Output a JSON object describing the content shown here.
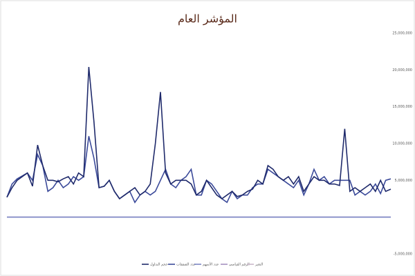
{
  "chart_data": {
    "type": "line",
    "title": "المؤشر العام",
    "categories": [
      null,
      null,
      null,
      null,
      null,
      null,
      null,
      null,
      null,
      null,
      null,
      null,
      null,
      null,
      null,
      null,
      null,
      null,
      null,
      null,
      null,
      null,
      null,
      null,
      null,
      null,
      null,
      null,
      null,
      null,
      null,
      null,
      null,
      null,
      null,
      null,
      null,
      null,
      null,
      null,
      null,
      null,
      null,
      null,
      null,
      null,
      null,
      null,
      null,
      null,
      null,
      null,
      null,
      null,
      null,
      null,
      null,
      null,
      null,
      null,
      null,
      null,
      null,
      null,
      null,
      null,
      null,
      null,
      null,
      null,
      null,
      null,
      null,
      null,
      null,
      null
    ],
    "series": [
      {
        "name": "حجم التداول",
        "color": "#1f2a6b",
        "values": [
          2700000,
          4000000,
          5000000,
          5500000,
          6000000,
          4200000,
          9800000,
          7000000,
          5000000,
          5000000,
          4800000,
          5200000,
          5500000,
          4500000,
          6000000,
          5500000,
          20400000,
          13000000,
          4000000,
          4200000,
          5000000,
          3500000,
          2500000,
          3000000,
          3500000,
          4000000,
          3000000,
          3500000,
          4500000,
          10000000,
          17000000,
          6000000,
          4500000,
          5000000,
          5000000,
          5000000,
          4500000,
          3000000,
          3500000,
          5000000,
          4000000,
          3000000,
          2500000,
          3000000,
          3500000,
          2800000,
          3000000,
          3500000,
          3800000,
          5000000,
          4500000,
          7000000,
          6500000,
          5500000,
          5000000,
          5500000,
          4500000,
          5500000,
          3500000,
          4500000,
          5500000,
          5000000,
          5000000,
          4500000,
          4500000,
          4300000,
          12000000,
          3500000,
          4000000,
          3500000,
          4000000,
          4500000,
          3500000,
          5000000,
          3500000,
          3800000
        ]
      },
      {
        "name": "عدد الصفقات",
        "color": "#3b4a9a",
        "values": [
          2700000,
          4500000,
          5200000,
          5600000,
          6000000,
          5000000,
          8500000,
          7000000,
          3500000,
          4000000,
          5000000,
          4000000,
          4500000,
          5500000,
          5000000,
          5500000,
          11000000,
          8000000,
          4000000,
          4200000,
          5000000,
          3500000,
          2500000,
          3000000,
          3500000,
          2000000,
          3000000,
          3500000,
          3000000,
          3500000,
          5000000,
          6500000,
          4500000,
          4000000,
          5000000,
          5500000,
          6500000,
          3000000,
          3000000,
          5000000,
          4500000,
          3500000,
          2500000,
          2000000,
          3500000,
          2500000,
          3000000,
          3000000,
          4000000,
          4500000,
          4500000,
          6500000,
          6000000,
          5500000,
          5000000,
          4500000,
          4000000,
          5000000,
          3000000,
          4500000,
          6500000,
          5000000,
          5500000,
          4500000,
          5000000,
          5000000,
          5000000,
          5000000,
          3000000,
          3500000,
          3000000,
          3500000,
          4500000,
          3200000,
          5000000,
          5200000
        ]
      },
      {
        "name": "عدد الأسهم",
        "color": "#7b86c4",
        "values": [
          0,
          0,
          0,
          0,
          0,
          0,
          0,
          0,
          0,
          0,
          0,
          0,
          0,
          0,
          0,
          0,
          0,
          0,
          0,
          0,
          0,
          0,
          0,
          0,
          0,
          0,
          0,
          0,
          0,
          0,
          0,
          0,
          0,
          0,
          0,
          0,
          0,
          0,
          0,
          0,
          0,
          0,
          0,
          0,
          0,
          0,
          0,
          0,
          0,
          0,
          0,
          0,
          0,
          0,
          0,
          0,
          0,
          0,
          0,
          0,
          0,
          0,
          0,
          0,
          0,
          0,
          0,
          0,
          0,
          0,
          0,
          0,
          0,
          0,
          0,
          0
        ]
      },
      {
        "name": "الرقم القياسي",
        "color": "#a58fc0",
        "values": [
          0,
          0,
          0,
          0,
          0,
          0,
          0,
          0,
          0,
          0,
          0,
          0,
          0,
          0,
          0,
          0,
          0,
          0,
          0,
          0,
          0,
          0,
          0,
          0,
          0,
          0,
          0,
          0,
          0,
          0,
          0,
          0,
          0,
          0,
          0,
          0,
          0,
          0,
          0,
          0,
          0,
          0,
          0,
          0,
          0,
          0,
          0,
          0,
          0,
          0,
          0,
          0,
          0,
          0,
          0,
          0,
          0,
          0,
          0,
          0,
          0,
          0,
          0,
          0,
          0,
          0,
          0,
          0,
          0,
          0,
          0,
          0,
          0,
          0,
          0,
          0
        ]
      },
      {
        "name": "التغير",
        "color": "#c9b7c9",
        "values": [
          0,
          0,
          0,
          0,
          0,
          0,
          0,
          0,
          0,
          0,
          0,
          0,
          0,
          0,
          0,
          0,
          0,
          0,
          0,
          0,
          0,
          0,
          0,
          0,
          0,
          0,
          0,
          0,
          0,
          0,
          0,
          0,
          0,
          0,
          0,
          0,
          0,
          0,
          0,
          0,
          0,
          0,
          0,
          0,
          0,
          0,
          0,
          0,
          0,
          0,
          0,
          0,
          0,
          0,
          0,
          0,
          0,
          0,
          0,
          0,
          0,
          0,
          0,
          0,
          0,
          0,
          0,
          0,
          0,
          0,
          0,
          0,
          0,
          0,
          0,
          0
        ]
      }
    ],
    "ylim": [
      -5000000,
      25000000
    ],
    "yticks": [
      {
        "value": 25000000,
        "label": "25,000,000"
      },
      {
        "value": 20000000,
        "label": "20,000,000"
      },
      {
        "value": 15000000,
        "label": "15,000,000"
      },
      {
        "value": 10000000,
        "label": "10,000,000"
      },
      {
        "value": 5000000,
        "label": "5,000,000"
      },
      {
        "value": -5000000,
        "label": "-5,000,000"
      }
    ],
    "grid": false,
    "legend": "bottom"
  }
}
